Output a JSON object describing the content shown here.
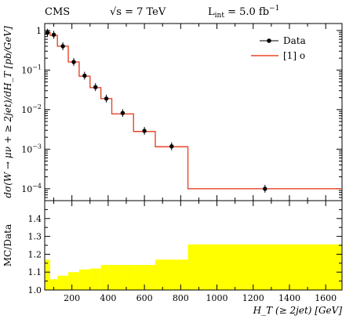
{
  "header": {
    "experiment": "CMS",
    "energy_label": "√s = 7 TeV",
    "lumi_label": "L",
    "lumi_sub": "int",
    "lumi_value": " = 5.0 fb",
    "lumi_exp": "−1"
  },
  "colors": {
    "mc_line": "#e8462a",
    "ratio_band": "#ffff00",
    "data_marker": "#000000"
  },
  "chart_data": [
    {
      "type": "line",
      "panel": "main",
      "ylabel": "dσ(W → μν + ≥ 2jet)/dH_T [pb/GeV]",
      "yscale": "log",
      "ylim": [
        5e-05,
        1.5
      ],
      "xlim": [
        50,
        1690
      ],
      "y_ticks": [
        {
          "value": 1,
          "label": "1"
        },
        {
          "value": 0.1,
          "label": "10",
          "exp": "−1"
        },
        {
          "value": 0.01,
          "label": "10",
          "exp": "−2"
        },
        {
          "value": 0.001,
          "label": "10",
          "exp": "−3"
        },
        {
          "value": 0.0001,
          "label": "10",
          "exp": "−4"
        }
      ],
      "legend": {
        "placement": "top-right",
        "entries": [
          {
            "label": "Data",
            "kind": "marker"
          },
          {
            "label": "[1] o",
            "kind": "line"
          }
        ]
      },
      "bin_edges": [
        50,
        80,
        120,
        180,
        240,
        300,
        360,
        420,
        540,
        660,
        840,
        1690
      ],
      "mc_values": [
        0.9,
        0.75,
        0.4,
        0.16,
        0.07,
        0.036,
        0.019,
        0.0078,
        0.0028,
        0.00115,
        0.0001
      ],
      "data": [
        {
          "x": 65,
          "y": 0.88
        },
        {
          "x": 100,
          "y": 0.78
        },
        {
          "x": 150,
          "y": 0.4
        },
        {
          "x": 210,
          "y": 0.16
        },
        {
          "x": 270,
          "y": 0.072
        },
        {
          "x": 330,
          "y": 0.037
        },
        {
          "x": 390,
          "y": 0.019
        },
        {
          "x": 480,
          "y": 0.0082
        },
        {
          "x": 600,
          "y": 0.0029
        },
        {
          "x": 750,
          "y": 0.00118
        },
        {
          "x": 1265,
          "y": 0.0001
        }
      ]
    },
    {
      "type": "area",
      "panel": "ratio",
      "ylabel": "MC/Data",
      "ylim": [
        1.0,
        1.5
      ],
      "xlim": [
        50,
        1690
      ],
      "xlabel": "H_T (≥ 2jet) [GeV]",
      "y_ticks": [
        {
          "value": 1.0,
          "label": "1.0"
        },
        {
          "value": 1.1,
          "label": "1.1"
        },
        {
          "value": 1.2,
          "label": "1.2"
        },
        {
          "value": 1.3,
          "label": "1.3"
        },
        {
          "value": 1.4,
          "label": "1.4"
        }
      ],
      "x_ticks": [
        {
          "value": 200,
          "label": "200"
        },
        {
          "value": 400,
          "label": "400"
        },
        {
          "value": 600,
          "label": "600"
        },
        {
          "value": 800,
          "label": "800"
        },
        {
          "value": 1000,
          "label": "1000"
        },
        {
          "value": 1200,
          "label": "1200"
        },
        {
          "value": 1400,
          "label": "1400"
        },
        {
          "value": 1600,
          "label": "1600"
        }
      ],
      "bin_edges": [
        50,
        80,
        120,
        180,
        240,
        300,
        360,
        420,
        540,
        660,
        840,
        1690
      ],
      "band_upper": [
        1.17,
        1.06,
        1.08,
        1.1,
        1.115,
        1.12,
        1.14,
        1.14,
        1.14,
        1.17,
        1.255
      ],
      "band_lower": [
        1.0,
        1.0,
        1.0,
        1.0,
        1.0,
        1.0,
        1.0,
        1.0,
        1.0,
        1.0,
        1.0
      ]
    }
  ]
}
